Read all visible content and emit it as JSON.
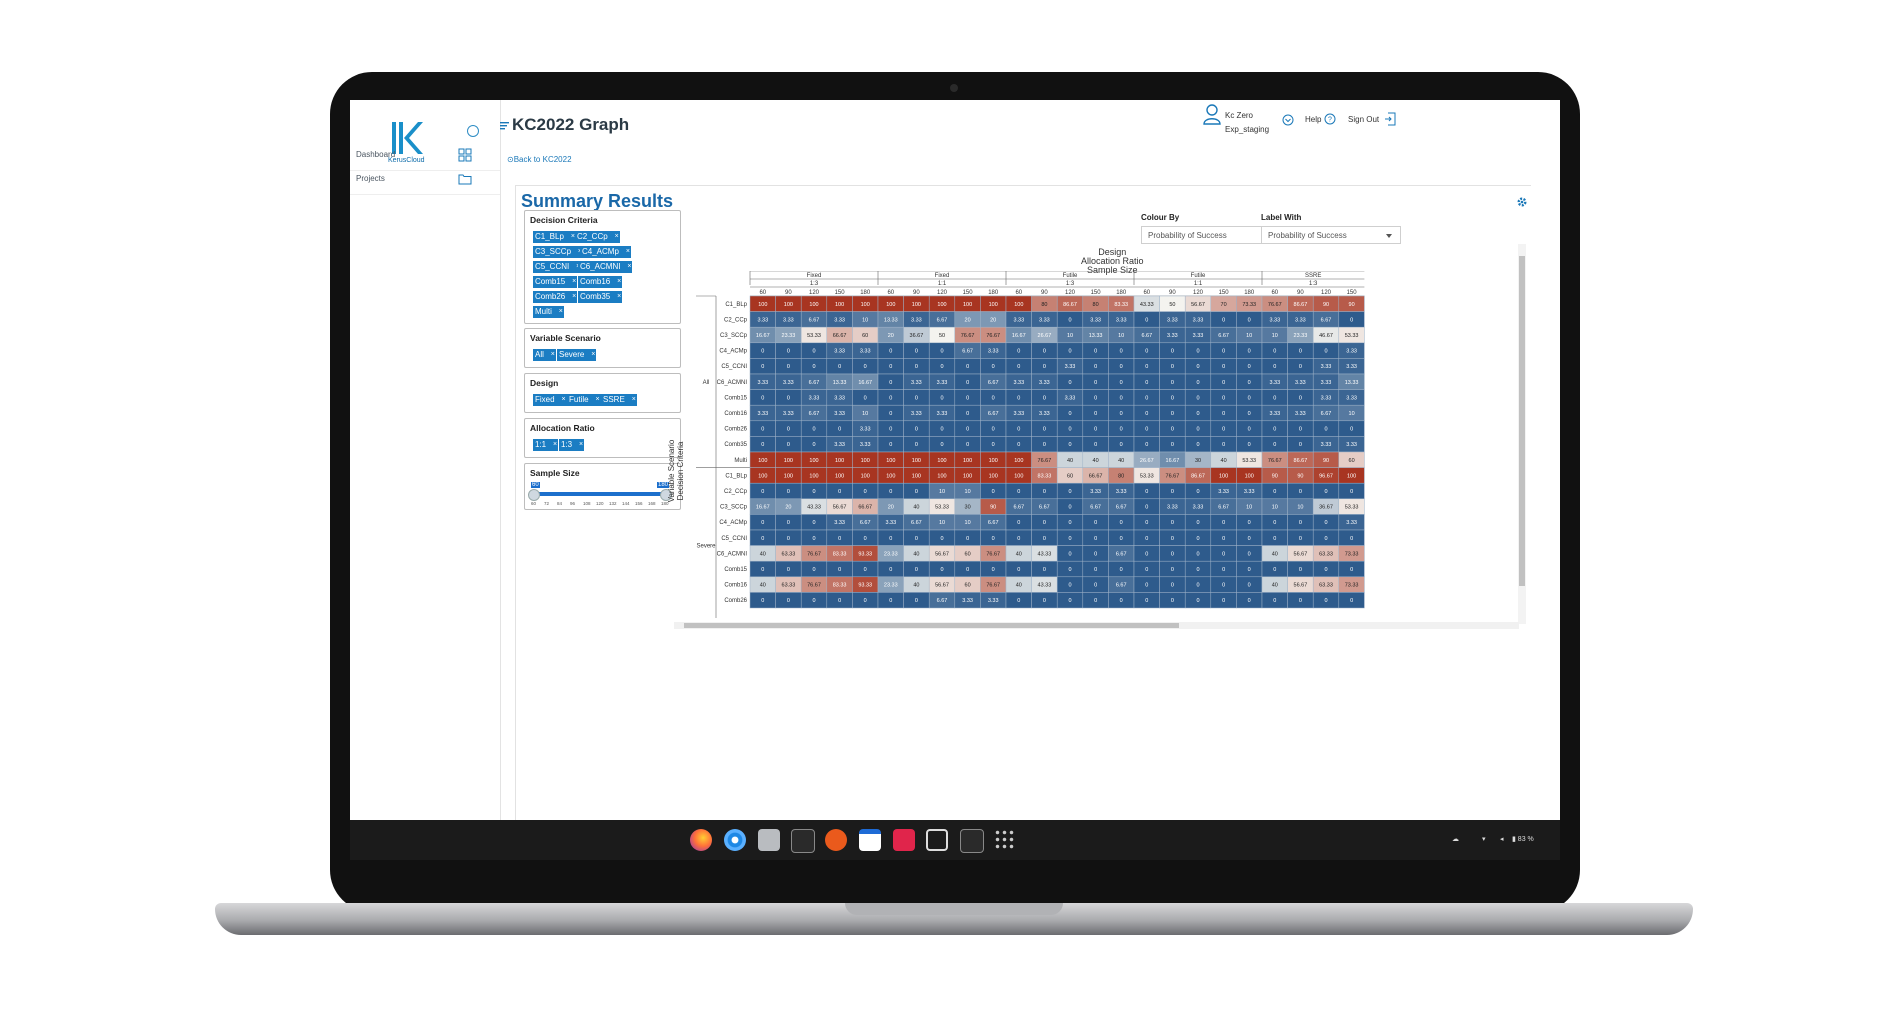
{
  "app": {
    "logo_text": "KerusCloud",
    "page_title": "KC2022 Graph",
    "back_link": "Back to KC2022"
  },
  "sidebar": {
    "items": [
      {
        "label": "Dashboard",
        "icon": "grid-icon"
      },
      {
        "label": "Projects",
        "icon": "folder-icon"
      }
    ]
  },
  "header": {
    "user_name": "Kc Zero",
    "user_env": "Exp_staging",
    "help_label": "Help",
    "signout_label": "Sign Out"
  },
  "summary": {
    "title": "Summary Results",
    "filters": {
      "decision_title": "Decision Criteria",
      "decision_chips": [
        "C1_BLp",
        "C2_CCp",
        "C3_SCCp",
        "C4_ACMp",
        "C5_CCNI",
        "C6_ACMNI",
        "Comb15",
        "Comb16",
        "Comb26",
        "Comb35",
        "Multi"
      ],
      "scenario_title": "Variable Scenario",
      "scenario_chips": [
        "All",
        "Severe"
      ],
      "design_title": "Design",
      "design_chips": [
        "Fixed",
        "Futile",
        "SSRE"
      ],
      "ratio_title": "Allocation Ratio",
      "ratio_chips": [
        "1:1",
        "1:3"
      ],
      "sample_title": "Sample Size",
      "sample_min": "60",
      "sample_max": "180",
      "sample_ticks": [
        "60",
        "72",
        "84",
        "96",
        "108",
        "120",
        "132",
        "144",
        "156",
        "168",
        "180"
      ]
    },
    "colour_by_label": "Colour By",
    "colour_by_value": "Probability of Success",
    "label_with_label": "Label With",
    "label_with_value": "Probability of Success"
  },
  "chart_data": {
    "type": "heatmap",
    "title_lines": [
      "Design",
      "Allocation Ratio",
      "Sample Size"
    ],
    "y_axis_label": "Variable Scenario\nDecision Criteria",
    "column_groups": [
      {
        "design": "Fixed",
        "ratio": "1:3"
      },
      {
        "design": "Fixed",
        "ratio": "1:1"
      },
      {
        "design": "Futile",
        "ratio": "1:3"
      },
      {
        "design": "Futile",
        "ratio": "1:1"
      },
      {
        "design": "SSRE",
        "ratio": "1:3"
      }
    ],
    "sample_sizes": [
      "60",
      "90",
      "120",
      "150",
      "180",
      "60",
      "90",
      "120",
      "150",
      "180",
      "60",
      "90",
      "120",
      "150",
      "180",
      "60",
      "90",
      "120",
      "150",
      "180",
      "60",
      "90",
      "120",
      "150"
    ],
    "rows": [
      {
        "scenario": "All",
        "criterion": "C1_BLp",
        "values": [
          100,
          100,
          100,
          100,
          100,
          100,
          100,
          100,
          100,
          100,
          100,
          80,
          86.67,
          80,
          83.33,
          43.33,
          50,
          56.67,
          70,
          73.33,
          76.67,
          86.67,
          90,
          90
        ]
      },
      {
        "scenario": "",
        "criterion": "C2_CCp",
        "values": [
          3.33,
          3.33,
          6.67,
          3.33,
          10,
          13.33,
          3.33,
          6.67,
          20,
          20,
          3.33,
          3.33,
          0,
          3.33,
          3.33,
          0,
          3.33,
          3.33,
          0,
          0,
          3.33,
          3.33,
          6.67,
          0
        ]
      },
      {
        "scenario": "",
        "criterion": "C3_SCCp",
        "values": [
          16.67,
          23.33,
          53.33,
          66.67,
          60,
          20,
          36.67,
          50,
          76.67,
          76.67,
          16.67,
          26.67,
          10,
          13.33,
          10,
          6.67,
          3.33,
          3.33,
          6.67,
          10,
          10,
          23.33,
          46.67,
          53.33
        ]
      },
      {
        "scenario": "",
        "criterion": "C4_ACMp",
        "values": [
          0,
          0,
          0,
          3.33,
          3.33,
          0,
          0,
          0,
          6.67,
          3.33,
          0,
          0,
          0,
          0,
          0,
          0,
          0,
          0,
          0,
          0,
          0,
          0,
          0,
          3.33
        ]
      },
      {
        "scenario": "",
        "criterion": "C5_CCNI",
        "values": [
          0,
          0,
          0,
          0,
          0,
          0,
          0,
          0,
          0,
          0,
          0,
          0,
          3.33,
          0,
          0,
          0,
          0,
          0,
          0,
          0,
          0,
          0,
          3.33,
          3.33
        ]
      },
      {
        "scenario": "",
        "criterion": "C6_ACMNI",
        "values": [
          3.33,
          3.33,
          6.67,
          13.33,
          16.67,
          0,
          3.33,
          3.33,
          0,
          6.67,
          3.33,
          3.33,
          0,
          0,
          0,
          0,
          0,
          0,
          0,
          0,
          3.33,
          3.33,
          3.33,
          13.33
        ]
      },
      {
        "scenario": "",
        "criterion": "Comb15",
        "values": [
          0,
          0,
          3.33,
          3.33,
          0,
          0,
          0,
          0,
          0,
          0,
          0,
          0,
          3.33,
          0,
          0,
          0,
          0,
          0,
          0,
          0,
          0,
          0,
          3.33,
          3.33
        ]
      },
      {
        "scenario": "",
        "criterion": "Comb16",
        "values": [
          3.33,
          3.33,
          6.67,
          3.33,
          10,
          0,
          3.33,
          3.33,
          0,
          6.67,
          3.33,
          3.33,
          0,
          0,
          0,
          0,
          0,
          0,
          0,
          0,
          3.33,
          3.33,
          6.67,
          10
        ]
      },
      {
        "scenario": "",
        "criterion": "Comb26",
        "values": [
          0,
          0,
          0,
          0,
          3.33,
          0,
          0,
          0,
          0,
          0,
          0,
          0,
          0,
          0,
          0,
          0,
          0,
          0,
          0,
          0,
          0,
          0,
          0,
          0
        ]
      },
      {
        "scenario": "",
        "criterion": "Comb35",
        "values": [
          0,
          0,
          0,
          3.33,
          3.33,
          0,
          0,
          0,
          0,
          0,
          0,
          0,
          0,
          0,
          0,
          0,
          0,
          0,
          0,
          0,
          0,
          0,
          3.33,
          3.33
        ]
      },
      {
        "scenario": "",
        "criterion": "Multi",
        "values": [
          100,
          100,
          100,
          100,
          100,
          100,
          100,
          100,
          100,
          100,
          100,
          76.67,
          40,
          40,
          40,
          26.67,
          16.67,
          30,
          40,
          53.33,
          76.67,
          86.67,
          90,
          60
        ]
      },
      {
        "scenario": "Severe",
        "criterion": "C1_BLp",
        "values": [
          100,
          100,
          100,
          100,
          100,
          100,
          100,
          100,
          100,
          100,
          100,
          83.33,
          60,
          66.67,
          80,
          53.33,
          76.67,
          86.67,
          100,
          100,
          90,
          90,
          96.67,
          100
        ]
      },
      {
        "scenario": "",
        "criterion": "C2_CCp",
        "values": [
          0,
          0,
          0,
          0,
          0,
          0,
          0,
          10,
          10,
          0,
          0,
          0,
          0,
          3.33,
          3.33,
          0,
          0,
          0,
          3.33,
          3.33,
          0,
          0,
          0,
          0
        ]
      },
      {
        "scenario": "",
        "criterion": "C3_SCCp",
        "values": [
          16.67,
          20,
          43.33,
          56.67,
          66.67,
          20,
          40,
          53.33,
          30,
          90,
          6.67,
          6.67,
          0,
          6.67,
          6.67,
          0,
          3.33,
          3.33,
          6.67,
          10,
          10,
          10,
          36.67,
          53.33
        ]
      },
      {
        "scenario": "",
        "criterion": "C4_ACMp",
        "values": [
          0,
          0,
          0,
          3.33,
          6.67,
          3.33,
          6.67,
          10,
          10,
          6.67,
          0,
          0,
          0,
          0,
          0,
          0,
          0,
          0,
          0,
          0,
          0,
          0,
          0,
          3.33
        ]
      },
      {
        "scenario": "",
        "criterion": "C5_CCNI",
        "values": [
          0,
          0,
          0,
          0,
          0,
          0,
          0,
          0,
          0,
          0,
          0,
          0,
          0,
          0,
          0,
          0,
          0,
          0,
          0,
          0,
          0,
          0,
          0,
          0
        ]
      },
      {
        "scenario": "",
        "criterion": "C6_ACMNI",
        "values": [
          40,
          63.33,
          76.67,
          83.33,
          93.33,
          23.33,
          40,
          56.67,
          60,
          76.67,
          40,
          43.33,
          0,
          0,
          6.67,
          0,
          0,
          0,
          0,
          0,
          40,
          56.67,
          63.33,
          73.33
        ]
      },
      {
        "scenario": "",
        "criterion": "Comb15",
        "values": [
          0,
          0,
          0,
          0,
          0,
          0,
          0,
          0,
          0,
          0,
          0,
          0,
          0,
          0,
          0,
          0,
          0,
          0,
          0,
          0,
          0,
          0,
          0,
          0
        ]
      },
      {
        "scenario": "",
        "criterion": "Comb16",
        "values": [
          40,
          63.33,
          76.67,
          83.33,
          93.33,
          23.33,
          40,
          56.67,
          60,
          76.67,
          40,
          43.33,
          0,
          0,
          6.67,
          0,
          0,
          0,
          0,
          0,
          40,
          56.67,
          63.33,
          73.33
        ]
      },
      {
        "scenario": "",
        "criterion": "Comb26",
        "values": [
          0,
          0,
          0,
          0,
          0,
          0,
          0,
          6.67,
          3.33,
          3.33,
          0,
          0,
          0,
          0,
          0,
          0,
          0,
          0,
          0,
          0,
          0,
          0,
          0,
          0
        ]
      }
    ],
    "colours": {
      "low": "#2e5b8c",
      "mid": "#f4f3ef",
      "high": "#a83521"
    }
  },
  "taskbar": {
    "icons": [
      "firefox-icon",
      "chromium-icon",
      "files-icon",
      "terminal-icon",
      "app-store-icon",
      "calendar-icon",
      "screenshot-icon",
      "crop-icon",
      "terminal2-icon",
      "app-grid-icon"
    ],
    "battery": "83 %"
  }
}
